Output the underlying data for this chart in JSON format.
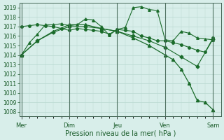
{
  "xlabel": "Pression niveau de la mer( hPa )",
  "background_color": "#d8eeea",
  "grid_color": "#b8d8d0",
  "line_color": "#1a6b2a",
  "ylim": [
    1007.5,
    1019.5
  ],
  "yticks": [
    1008,
    1009,
    1010,
    1011,
    1012,
    1013,
    1014,
    1015,
    1016,
    1017,
    1018,
    1019
  ],
  "x_days": [
    "Mer",
    "Dim",
    "Jeu",
    "Ven",
    "Sam"
  ],
  "x_positions": [
    0,
    24,
    48,
    72,
    96
  ],
  "xlim": [
    -1,
    100
  ],
  "series1_x": [
    0,
    4,
    8,
    12,
    16,
    20,
    24,
    28,
    32,
    36,
    40,
    44,
    48,
    52,
    56,
    60,
    64,
    68,
    72,
    76,
    80,
    84,
    88,
    92,
    96
  ],
  "series1": [
    1014.0,
    1015.3,
    1016.2,
    1017.2,
    1017.2,
    1017.3,
    1017.1,
    1017.2,
    1017.8,
    1017.7,
    1017.0,
    1016.1,
    1016.7,
    1016.9,
    1019.0,
    1019.1,
    1018.8,
    1018.7,
    1015.6,
    1015.5,
    1016.5,
    1016.3,
    1015.8,
    1015.7,
    1015.6
  ],
  "series2_x": [
    0,
    4,
    8,
    12,
    16,
    20,
    24,
    28,
    32,
    36,
    40,
    44,
    48,
    52,
    56,
    60,
    64,
    68,
    72,
    76,
    80,
    84,
    88,
    92,
    96
  ],
  "series2": [
    1017.0,
    1017.1,
    1017.2,
    1017.1,
    1017.0,
    1016.8,
    1016.6,
    1016.8,
    1016.7,
    1016.6,
    1016.5,
    1016.2,
    1016.7,
    1016.6,
    1016.5,
    1016.0,
    1015.8,
    1015.5,
    1015.5,
    1015.3,
    1015.1,
    1014.8,
    1014.5,
    1014.3,
    1015.8
  ],
  "series3_x": [
    0,
    8,
    16,
    24,
    32,
    40,
    48,
    56,
    64,
    72,
    80,
    88,
    96
  ],
  "series3": [
    1014.0,
    1015.5,
    1016.4,
    1017.0,
    1017.0,
    1016.8,
    1016.5,
    1016.0,
    1015.5,
    1014.8,
    1013.8,
    1012.8,
    1015.7
  ],
  "series4_x": [
    0,
    8,
    16,
    24,
    32,
    40,
    48,
    56,
    64,
    72,
    76,
    80,
    84,
    88,
    92,
    96
  ],
  "series4": [
    1014.0,
    1015.5,
    1016.5,
    1017.2,
    1017.2,
    1016.8,
    1016.5,
    1015.8,
    1015.0,
    1014.0,
    1013.5,
    1012.5,
    1011.0,
    1009.2,
    1009.0,
    1008.2
  ]
}
